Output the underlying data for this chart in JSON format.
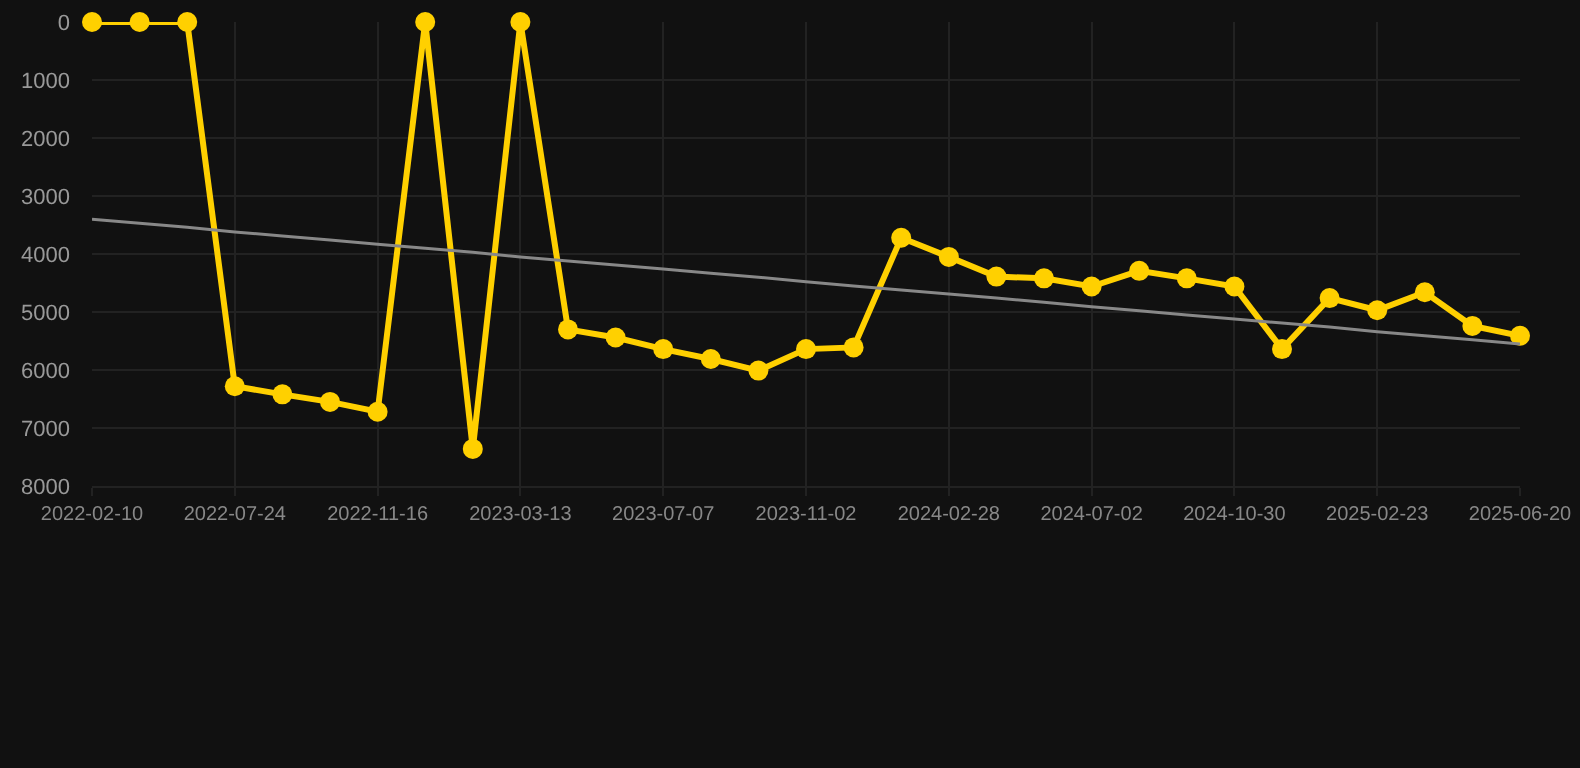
{
  "chart_data": {
    "type": "line",
    "categories": [
      "2022-02-10",
      null,
      null,
      "2022-07-24",
      null,
      null,
      "2022-11-16",
      null,
      null,
      "2023-03-13",
      null,
      null,
      "2023-07-07",
      null,
      null,
      "2023-11-02",
      null,
      null,
      "2024-02-28",
      null,
      null,
      "2024-07-02",
      null,
      null,
      "2024-10-30",
      null,
      null,
      "2025-02-23",
      null,
      null,
      "2025-06-20"
    ],
    "series": [
      {
        "color": "#ffd000",
        "marker": "circle",
        "values": [
          0,
          0,
          0,
          6280,
          6420,
          6550,
          6720,
          0,
          7360,
          0,
          5300,
          5440,
          5640,
          5810,
          6010,
          5640,
          5610,
          3720,
          4050,
          4390,
          4420,
          4560,
          4290,
          4420,
          4560,
          5640,
          4760,
          4970,
          4660,
          5240,
          5410
        ]
      },
      {
        "type": "line",
        "color": "#888888",
        "marker": "none",
        "values": [
          3400,
          3470,
          3540,
          3620,
          3690,
          3760,
          3830,
          3900,
          3970,
          4050,
          4120,
          4190,
          4260,
          4330,
          4400,
          4480,
          4550,
          4620,
          4690,
          4760,
          4830,
          4910,
          4980,
          5050,
          5120,
          5190,
          5260,
          5340,
          5410,
          5480,
          5550
        ]
      }
    ],
    "ylim": [
      8000,
      0
    ],
    "yticks": [
      0,
      1000,
      2000,
      3000,
      4000,
      5000,
      6000,
      7000,
      8000
    ],
    "grid": true
  }
}
